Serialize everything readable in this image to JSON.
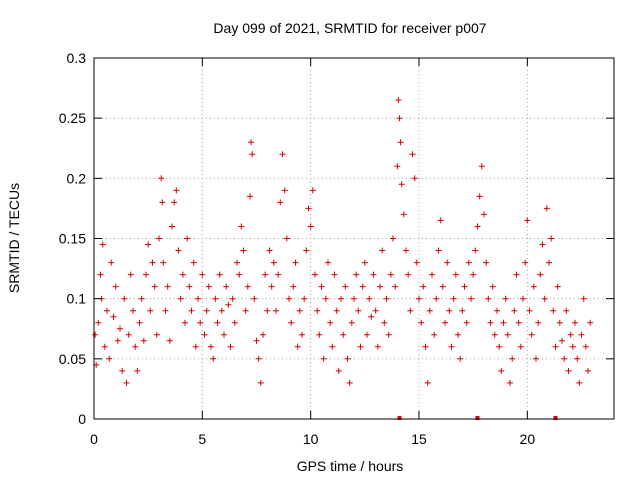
{
  "chart_data": {
    "type": "scatter",
    "title": "Day 099 of 2021, SRMTID for receiver p007",
    "xlabel": "GPS time / hours",
    "ylabel": "SRMTID / TECUs",
    "xlim": [
      0,
      24
    ],
    "ylim": [
      0,
      0.3
    ],
    "x_ticks": [
      0,
      5,
      10,
      15,
      20
    ],
    "y_ticks": [
      0,
      0.05,
      0.1,
      0.15,
      0.2,
      0.25,
      0.3
    ],
    "x_tick_labels": [
      "0",
      "5",
      "10",
      "15",
      "20"
    ],
    "y_tick_labels": [
      "0",
      "0.05",
      "0.1",
      "0.15",
      "0.2",
      "0.25",
      "0.3"
    ],
    "grid": true,
    "marker": "+",
    "series_color": "#dd0000",
    "series": [
      {
        "name": "SRMTID",
        "points": [
          [
            0.05,
            0.07
          ],
          [
            0.1,
            0.045
          ],
          [
            0.2,
            0.08
          ],
          [
            0.3,
            0.12
          ],
          [
            0.35,
            0.1
          ],
          [
            0.4,
            0.145
          ],
          [
            0.5,
            0.06
          ],
          [
            0.6,
            0.09
          ],
          [
            0.7,
            0.05
          ],
          [
            0.8,
            0.13
          ],
          [
            0.9,
            0.085
          ],
          [
            1.0,
            0.11
          ],
          [
            1.1,
            0.065
          ],
          [
            1.2,
            0.075
          ],
          [
            1.3,
            0.04
          ],
          [
            1.4,
            0.1
          ],
          [
            1.5,
            0.03
          ],
          [
            1.6,
            0.07
          ],
          [
            1.7,
            0.12
          ],
          [
            1.8,
            0.09
          ],
          [
            1.9,
            0.06
          ],
          [
            2.0,
            0.04
          ],
          [
            2.1,
            0.08
          ],
          [
            2.2,
            0.1
          ],
          [
            2.3,
            0.065
          ],
          [
            2.4,
            0.12
          ],
          [
            2.5,
            0.145
          ],
          [
            2.6,
            0.09
          ],
          [
            2.7,
            0.13
          ],
          [
            2.8,
            0.11
          ],
          [
            2.9,
            0.07
          ],
          [
            3.0,
            0.15
          ],
          [
            3.1,
            0.2
          ],
          [
            3.15,
            0.18
          ],
          [
            3.2,
            0.13
          ],
          [
            3.3,
            0.09
          ],
          [
            3.4,
            0.11
          ],
          [
            3.5,
            0.065
          ],
          [
            3.6,
            0.16
          ],
          [
            3.7,
            0.18
          ],
          [
            3.8,
            0.19
          ],
          [
            3.9,
            0.14
          ],
          [
            4.0,
            0.1
          ],
          [
            4.1,
            0.12
          ],
          [
            4.2,
            0.08
          ],
          [
            4.3,
            0.15
          ],
          [
            4.4,
            0.11
          ],
          [
            4.5,
            0.09
          ],
          [
            4.6,
            0.13
          ],
          [
            4.7,
            0.06
          ],
          [
            4.8,
            0.1
          ],
          [
            4.9,
            0.08
          ],
          [
            5.0,
            0.12
          ],
          [
            5.1,
            0.07
          ],
          [
            5.2,
            0.09
          ],
          [
            5.3,
            0.11
          ],
          [
            5.4,
            0.06
          ],
          [
            5.5,
            0.05
          ],
          [
            5.6,
            0.1
          ],
          [
            5.7,
            0.08
          ],
          [
            5.8,
            0.12
          ],
          [
            5.9,
            0.09
          ],
          [
            6.0,
            0.07
          ],
          [
            6.1,
            0.11
          ],
          [
            6.2,
            0.095
          ],
          [
            6.3,
            0.06
          ],
          [
            6.4,
            0.1
          ],
          [
            6.5,
            0.08
          ],
          [
            6.6,
            0.13
          ],
          [
            6.7,
            0.12
          ],
          [
            6.8,
            0.16
          ],
          [
            6.9,
            0.14
          ],
          [
            7.0,
            0.09
          ],
          [
            7.1,
            0.11
          ],
          [
            7.2,
            0.185
          ],
          [
            7.25,
            0.23
          ],
          [
            7.3,
            0.22
          ],
          [
            7.4,
            0.1
          ],
          [
            7.5,
            0.065
          ],
          [
            7.6,
            0.05
          ],
          [
            7.7,
            0.03
          ],
          [
            7.8,
            0.07
          ],
          [
            7.9,
            0.12
          ],
          [
            8.0,
            0.09
          ],
          [
            8.1,
            0.14
          ],
          [
            8.2,
            0.11
          ],
          [
            8.3,
            0.13
          ],
          [
            8.4,
            0.09
          ],
          [
            8.5,
            0.12
          ],
          [
            8.6,
            0.18
          ],
          [
            8.7,
            0.22
          ],
          [
            8.8,
            0.19
          ],
          [
            8.9,
            0.15
          ],
          [
            9.0,
            0.1
          ],
          [
            9.1,
            0.08
          ],
          [
            9.2,
            0.11
          ],
          [
            9.3,
            0.13
          ],
          [
            9.4,
            0.06
          ],
          [
            9.5,
            0.09
          ],
          [
            9.6,
            0.07
          ],
          [
            9.7,
            0.1
          ],
          [
            9.8,
            0.14
          ],
          [
            9.9,
            0.175
          ],
          [
            10.0,
            0.16
          ],
          [
            10.1,
            0.19
          ],
          [
            10.2,
            0.12
          ],
          [
            10.3,
            0.09
          ],
          [
            10.4,
            0.07
          ],
          [
            10.5,
            0.11
          ],
          [
            10.6,
            0.05
          ],
          [
            10.7,
            0.1
          ],
          [
            10.8,
            0.13
          ],
          [
            10.9,
            0.08
          ],
          [
            11.0,
            0.06
          ],
          [
            11.1,
            0.12
          ],
          [
            11.2,
            0.09
          ],
          [
            11.3,
            0.04
          ],
          [
            11.4,
            0.1
          ],
          [
            11.5,
            0.07
          ],
          [
            11.6,
            0.11
          ],
          [
            11.7,
            0.05
          ],
          [
            11.8,
            0.03
          ],
          [
            11.9,
            0.08
          ],
          [
            12.0,
            0.1
          ],
          [
            12.1,
            0.12
          ],
          [
            12.2,
            0.09
          ],
          [
            12.3,
            0.06
          ],
          [
            12.4,
            0.11
          ],
          [
            12.5,
            0.13
          ],
          [
            12.6,
            0.07
          ],
          [
            12.7,
            0.1
          ],
          [
            12.8,
            0.085
          ],
          [
            12.9,
            0.12
          ],
          [
            13.0,
            0.09
          ],
          [
            13.1,
            0.06
          ],
          [
            13.2,
            0.11
          ],
          [
            13.3,
            0.14
          ],
          [
            13.4,
            0.08
          ],
          [
            13.5,
            0.1
          ],
          [
            13.6,
            0.07
          ],
          [
            13.7,
            0.12
          ],
          [
            13.8,
            0.15
          ],
          [
            13.9,
            0.11
          ],
          [
            14.0,
            0.21
          ],
          [
            14.05,
            0.265
          ],
          [
            14.1,
            0.25
          ],
          [
            14.15,
            0.23
          ],
          [
            14.2,
            0.195
          ],
          [
            14.3,
            0.17
          ],
          [
            14.4,
            0.14
          ],
          [
            14.5,
            0.12
          ],
          [
            14.6,
            0.09
          ],
          [
            14.7,
            0.22
          ],
          [
            14.8,
            0.2
          ],
          [
            14.9,
            0.13
          ],
          [
            15.0,
            0.1
          ],
          [
            15.1,
            0.08
          ],
          [
            15.2,
            0.11
          ],
          [
            15.3,
            0.06
          ],
          [
            15.4,
            0.03
          ],
          [
            15.5,
            0.09
          ],
          [
            15.6,
            0.12
          ],
          [
            15.7,
            0.07
          ],
          [
            15.8,
            0.1
          ],
          [
            15.9,
            0.14
          ],
          [
            16.0,
            0.165
          ],
          [
            16.1,
            0.11
          ],
          [
            16.2,
            0.08
          ],
          [
            16.3,
            0.13
          ],
          [
            16.4,
            0.09
          ],
          [
            16.5,
            0.06
          ],
          [
            16.6,
            0.1
          ],
          [
            16.7,
            0.12
          ],
          [
            16.8,
            0.07
          ],
          [
            16.9,
            0.05
          ],
          [
            17.0,
            0.09
          ],
          [
            17.1,
            0.11
          ],
          [
            17.2,
            0.08
          ],
          [
            17.3,
            0.13
          ],
          [
            17.4,
            0.1
          ],
          [
            17.5,
            0.12
          ],
          [
            17.6,
            0.14
          ],
          [
            17.7,
            0.16
          ],
          [
            17.8,
            0.185
          ],
          [
            17.9,
            0.21
          ],
          [
            18.0,
            0.17
          ],
          [
            18.1,
            0.13
          ],
          [
            18.2,
            0.1
          ],
          [
            18.3,
            0.08
          ],
          [
            18.4,
            0.11
          ],
          [
            18.5,
            0.07
          ],
          [
            18.6,
            0.09
          ],
          [
            18.7,
            0.06
          ],
          [
            18.8,
            0.04
          ],
          [
            18.9,
            0.08
          ],
          [
            19.0,
            0.1
          ],
          [
            19.1,
            0.07
          ],
          [
            19.2,
            0.03
          ],
          [
            19.3,
            0.05
          ],
          [
            19.4,
            0.09
          ],
          [
            19.5,
            0.12
          ],
          [
            19.6,
            0.08
          ],
          [
            19.7,
            0.06
          ],
          [
            19.8,
            0.1
          ],
          [
            19.9,
            0.13
          ],
          [
            20.0,
            0.165
          ],
          [
            20.1,
            0.09
          ],
          [
            20.2,
            0.07
          ],
          [
            20.3,
            0.11
          ],
          [
            20.4,
            0.05
          ],
          [
            20.5,
            0.08
          ],
          [
            20.6,
            0.12
          ],
          [
            20.7,
            0.145
          ],
          [
            20.8,
            0.1
          ],
          [
            20.9,
            0.175
          ],
          [
            21.0,
            0.13
          ],
          [
            21.1,
            0.15
          ],
          [
            21.2,
            0.09
          ],
          [
            21.3,
            0.06
          ],
          [
            21.4,
            0.11
          ],
          [
            21.5,
            0.08
          ],
          [
            21.6,
            0.065
          ],
          [
            21.7,
            0.05
          ],
          [
            21.8,
            0.09
          ],
          [
            21.9,
            0.04
          ],
          [
            22.0,
            0.07
          ],
          [
            22.1,
            0.06
          ],
          [
            22.2,
            0.08
          ],
          [
            22.3,
            0.05
          ],
          [
            22.4,
            0.03
          ],
          [
            22.5,
            0.07
          ],
          [
            22.6,
            0.1
          ],
          [
            22.7,
            0.06
          ],
          [
            22.8,
            0.04
          ],
          [
            22.9,
            0.08
          ]
        ]
      }
    ],
    "gap_markers_x": [
      14.1,
      17.7,
      21.3
    ]
  }
}
